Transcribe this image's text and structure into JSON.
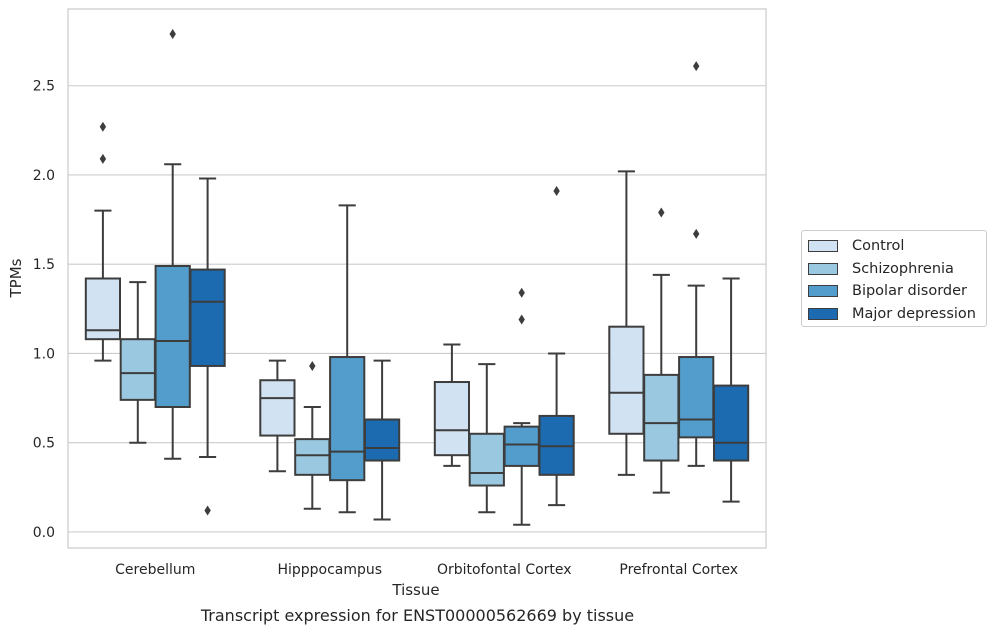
{
  "chart_data": {
    "type": "box",
    "title": "",
    "caption": "Transcript expression for ENST00000562669 by tissue",
    "xlabel": "Tissue",
    "ylabel": "TPMs",
    "ylim": [
      -0.09,
      2.93
    ],
    "yticks": [
      "0.0",
      "0.5",
      "1.0",
      "1.5",
      "2.0",
      "2.5"
    ],
    "grid": true,
    "legend_position": "right, outside",
    "categories": [
      "Cerebellum",
      "Hipppocampus",
      "Orbitofontal Cortex",
      "Prefrontal Cortex"
    ],
    "series": [
      {
        "name": "Control",
        "color": "#d1e2f2",
        "boxes": [
          {
            "whislo": 0.96,
            "q1": 1.08,
            "med": 1.13,
            "q3": 1.42,
            "whishi": 1.8,
            "fliers": [
              2.09,
              2.27
            ]
          },
          {
            "whislo": 0.34,
            "q1": 0.54,
            "med": 0.75,
            "q3": 0.85,
            "whishi": 0.96,
            "fliers": []
          },
          {
            "whislo": 0.37,
            "q1": 0.43,
            "med": 0.57,
            "q3": 0.84,
            "whishi": 1.05,
            "fliers": []
          },
          {
            "whislo": 0.32,
            "q1": 0.55,
            "med": 0.78,
            "q3": 1.15,
            "whishi": 2.02,
            "fliers": []
          }
        ]
      },
      {
        "name": "Schizophrenia",
        "color": "#9ac8e0",
        "boxes": [
          {
            "whislo": 0.5,
            "q1": 0.74,
            "med": 0.89,
            "q3": 1.08,
            "whishi": 1.4,
            "fliers": []
          },
          {
            "whislo": 0.13,
            "q1": 0.32,
            "med": 0.43,
            "q3": 0.52,
            "whishi": 0.7,
            "fliers": [
              0.93
            ]
          },
          {
            "whislo": 0.11,
            "q1": 0.26,
            "med": 0.33,
            "q3": 0.55,
            "whishi": 0.94,
            "fliers": []
          },
          {
            "whislo": 0.22,
            "q1": 0.4,
            "med": 0.61,
            "q3": 0.88,
            "whishi": 1.44,
            "fliers": [
              1.79
            ]
          }
        ]
      },
      {
        "name": "Bipolar disorder",
        "color": "#529dcc",
        "boxes": [
          {
            "whislo": 0.41,
            "q1": 0.7,
            "med": 1.07,
            "q3": 1.49,
            "whishi": 2.06,
            "fliers": [
              2.79
            ]
          },
          {
            "whislo": 0.11,
            "q1": 0.29,
            "med": 0.45,
            "q3": 0.98,
            "whishi": 1.83,
            "fliers": []
          },
          {
            "whislo": 0.04,
            "q1": 0.37,
            "med": 0.49,
            "q3": 0.59,
            "whishi": 0.61,
            "fliers": [
              1.19,
              1.34
            ]
          },
          {
            "whislo": 0.37,
            "q1": 0.53,
            "med": 0.63,
            "q3": 0.98,
            "whishi": 1.38,
            "fliers": [
              1.67,
              2.61
            ]
          }
        ]
      },
      {
        "name": "Major depression",
        "color": "#1c6aaf",
        "boxes": [
          {
            "whislo": 0.42,
            "q1": 0.93,
            "med": 1.29,
            "q3": 1.47,
            "whishi": 1.98,
            "fliers": [
              0.12
            ]
          },
          {
            "whislo": 0.07,
            "q1": 0.4,
            "med": 0.47,
            "q3": 0.63,
            "whishi": 0.96,
            "fliers": []
          },
          {
            "whislo": 0.15,
            "q1": 0.32,
            "med": 0.48,
            "q3": 0.65,
            "whishi": 1.0,
            "fliers": [
              1.91
            ]
          },
          {
            "whislo": 0.17,
            "q1": 0.4,
            "med": 0.5,
            "q3": 0.82,
            "whishi": 1.42,
            "fliers": []
          }
        ]
      }
    ]
  }
}
